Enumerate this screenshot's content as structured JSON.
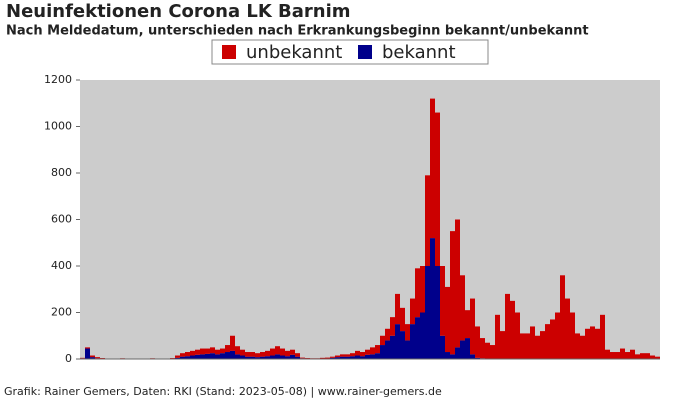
{
  "chart_data": {
    "type": "stacked_bar",
    "title": "Neuinfektionen Corona LK Barnim",
    "subtitle": "Nach Meldedatum, unterschieden nach Erkrankungsbeginn bekannt/unbekannt",
    "footer": "Grafik: Rainer Gemers, Daten: RKI (Stand: 2023-05-08) | www.rainer-gemers.de",
    "ylim": [
      0,
      1200
    ],
    "yticks": [
      0,
      200,
      400,
      600,
      800,
      1000,
      1200
    ],
    "legend": "top",
    "series": [
      {
        "name": "bekannt",
        "color": "#00008b",
        "values": [
          3,
          45,
          8,
          3,
          2,
          1,
          1,
          0,
          1,
          0,
          0,
          1,
          0,
          0,
          1,
          0,
          0,
          1,
          2,
          5,
          10,
          12,
          15,
          18,
          20,
          22,
          25,
          20,
          25,
          30,
          35,
          20,
          15,
          10,
          10,
          8,
          10,
          12,
          15,
          20,
          15,
          12,
          18,
          10,
          3,
          2,
          1,
          1,
          2,
          2,
          5,
          8,
          10,
          10,
          12,
          15,
          12,
          18,
          20,
          25,
          60,
          80,
          100,
          150,
          120,
          80,
          150,
          180,
          200,
          400,
          520,
          400,
          100,
          30,
          20,
          50,
          80,
          90,
          20,
          5,
          3,
          2,
          2,
          2,
          2,
          2,
          1,
          1,
          1,
          1,
          1,
          1,
          1,
          1,
          1,
          1,
          1,
          1,
          1,
          1,
          1,
          1,
          1,
          1,
          1,
          0,
          0,
          0,
          0,
          0,
          0,
          0,
          0,
          0,
          0,
          0
        ]
      },
      {
        "name": "unbekannt",
        "color": "#cc0000",
        "values": [
          2,
          5,
          7,
          5,
          2,
          1,
          1,
          1,
          2,
          1,
          0,
          1,
          1,
          1,
          2,
          1,
          0,
          1,
          2,
          10,
          15,
          18,
          20,
          22,
          25,
          23,
          25,
          20,
          20,
          30,
          65,
          35,
          25,
          20,
          20,
          17,
          20,
          23,
          30,
          35,
          30,
          23,
          22,
          15,
          3,
          2,
          2,
          2,
          3,
          4,
          5,
          7,
          10,
          10,
          13,
          20,
          18,
          22,
          30,
          35,
          40,
          50,
          80,
          130,
          100,
          70,
          110,
          210,
          200,
          390,
          600,
          660,
          300,
          280,
          530,
          550,
          280,
          120,
          240,
          135,
          87,
          68,
          58,
          188,
          118,
          278,
          249,
          199,
          109,
          109,
          139,
          99,
          119,
          149,
          169,
          199,
          359,
          259,
          199,
          109,
          99,
          129,
          139,
          129,
          189,
          40,
          30,
          30,
          45,
          30,
          40,
          20,
          25,
          25,
          15,
          10
        ]
      }
    ]
  }
}
